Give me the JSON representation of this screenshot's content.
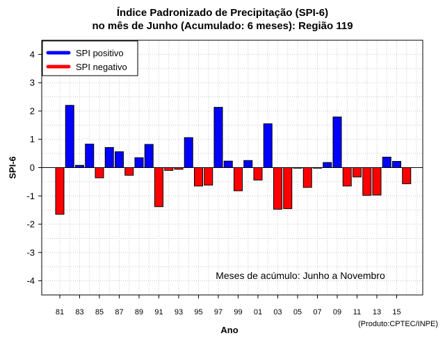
{
  "chart_data": {
    "type": "bar",
    "title_line1": "Índice Padronizado de Precipitação (SPI-6)",
    "title_line2": "no mês de Junho (Acumulado: 6 meses): Região 119",
    "xlabel": "Ano",
    "ylabel": "SPI-6",
    "annotation": "Meses de acúmulo: Junho a Novembro",
    "credit": "(Produto:CPTEC/INPE)",
    "ylim": [
      -4.5,
      4.5
    ],
    "yticks": [
      -4,
      -3,
      -2,
      -1,
      0,
      1,
      2,
      3,
      4
    ],
    "grid": true,
    "legend_position": "top-left",
    "legend": [
      {
        "label": "SPI positivo",
        "color": "#0000ff"
      },
      {
        "label": "SPI negativo",
        "color": "#ff0000"
      }
    ],
    "colors": {
      "positive": "#0000ff",
      "negative": "#ff0000"
    },
    "categories": [
      "1981",
      "1982",
      "1983",
      "1984",
      "1985",
      "1986",
      "1987",
      "1988",
      "1989",
      "1990",
      "1991",
      "1992",
      "1993",
      "1994",
      "1995",
      "1996",
      "1997",
      "1998",
      "1999",
      "2000",
      "2001",
      "2002",
      "2003",
      "2004",
      "2005",
      "2006",
      "2007",
      "2008",
      "2009",
      "2010",
      "2011",
      "2012",
      "2013",
      "2014",
      "2015",
      "2016"
    ],
    "values": [
      -1.65,
      2.2,
      0.08,
      0.83,
      -0.36,
      0.71,
      0.56,
      -0.27,
      0.35,
      0.82,
      -1.38,
      -0.1,
      -0.06,
      1.06,
      -0.65,
      -0.62,
      2.13,
      0.23,
      -0.82,
      0.25,
      -0.44,
      1.55,
      -1.47,
      -1.45,
      -0.02,
      -0.7,
      -0.02,
      0.18,
      1.79,
      -0.65,
      -0.33,
      -0.98,
      -0.97,
      0.37,
      0.22,
      -0.57
    ],
    "xtick_labels": [
      "81",
      "83",
      "85",
      "87",
      "89",
      "91",
      "93",
      "95",
      "97",
      "99",
      "01",
      "03",
      "05",
      "07",
      "09",
      "11",
      "13",
      "15"
    ]
  }
}
